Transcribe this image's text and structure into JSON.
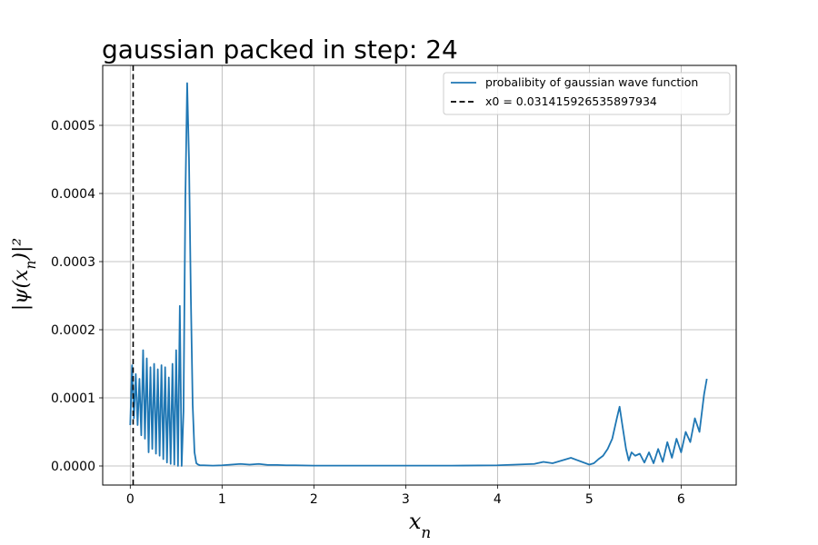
{
  "chart_data": {
    "type": "line",
    "title": "gaussian packed in step: 24",
    "xlabel": "x_n",
    "ylabel": "|ψ(x_n)|²",
    "xlim": [
      -0.3,
      6.6
    ],
    "ylim": [
      -2.8e-05,
      0.000588
    ],
    "xticks": [
      0,
      1,
      2,
      3,
      4,
      5,
      6
    ],
    "xtick_labels": [
      "0",
      "1",
      "2",
      "3",
      "4",
      "5",
      "6"
    ],
    "yticks": [
      0.0,
      0.0001,
      0.0002,
      0.0003,
      0.0004,
      0.0005
    ],
    "ytick_labels": [
      "0.0000",
      "0.0001",
      "0.0002",
      "0.0003",
      "0.0004",
      "0.0005"
    ],
    "grid": true,
    "legend_position": "top-right",
    "series": [
      {
        "name": "probalibity of gaussian wave function",
        "color": "#1f77b4",
        "style": "solid",
        "x": [
          0.0,
          0.02,
          0.04,
          0.06,
          0.08,
          0.1,
          0.12,
          0.14,
          0.16,
          0.18,
          0.2,
          0.22,
          0.24,
          0.26,
          0.28,
          0.3,
          0.32,
          0.34,
          0.36,
          0.38,
          0.4,
          0.42,
          0.44,
          0.46,
          0.48,
          0.5,
          0.52,
          0.54,
          0.56,
          0.58,
          0.6,
          0.62,
          0.64,
          0.66,
          0.68,
          0.7,
          0.72,
          0.74,
          0.76,
          0.8,
          0.9,
          1.0,
          1.1,
          1.2,
          1.3,
          1.4,
          1.5,
          1.6,
          1.7,
          1.8,
          2.0,
          2.5,
          3.0,
          3.5,
          4.0,
          4.2,
          4.4,
          4.5,
          4.6,
          4.7,
          4.8,
          4.9,
          5.0,
          5.05,
          5.1,
          5.15,
          5.2,
          5.25,
          5.3,
          5.33,
          5.36,
          5.4,
          5.43,
          5.46,
          5.5,
          5.55,
          5.6,
          5.65,
          5.7,
          5.75,
          5.8,
          5.85,
          5.9,
          5.95,
          6.0,
          6.05,
          6.1,
          6.15,
          6.2,
          6.25,
          6.28
        ],
        "y": [
          6e-05,
          0.000148,
          7e-05,
          0.000135,
          6e-05,
          0.000128,
          4.5e-05,
          0.00017,
          4e-05,
          0.000158,
          2e-05,
          0.000145,
          2.5e-05,
          0.00015,
          1.8e-05,
          0.000142,
          1.5e-05,
          0.000148,
          1e-05,
          0.000145,
          5e-06,
          0.00013,
          3e-06,
          0.00015,
          2e-06,
          0.00017,
          0.0,
          0.000235,
          0.0,
          8e-05,
          0.00039,
          0.000562,
          0.00045,
          0.00025,
          9e-05,
          2e-05,
          4e-06,
          2e-06,
          1e-06,
          1e-06,
          5e-07,
          1e-06,
          2e-06,
          3e-06,
          2e-06,
          3e-06,
          1.5e-06,
          1.5e-06,
          1e-06,
          1e-06,
          5e-07,
          5e-07,
          5e-07,
          5e-07,
          1e-06,
          2e-06,
          3e-06,
          6e-06,
          4e-06,
          8e-06,
          1.2e-05,
          7e-06,
          2e-06,
          4e-06,
          1e-05,
          1.5e-05,
          2.5e-05,
          4e-05,
          7e-05,
          8.7e-05,
          6e-05,
          2.5e-05,
          8e-06,
          2e-05,
          1.5e-05,
          1.8e-05,
          5e-06,
          2e-05,
          4e-06,
          2.5e-05,
          6e-06,
          3.5e-05,
          1.2e-05,
          4e-05,
          2e-05,
          5e-05,
          3.5e-05,
          7e-05,
          5e-05,
          0.000105,
          0.000128
        ]
      },
      {
        "name": "x0 = 0.031415926535897934",
        "color": "#000000",
        "style": "dashed",
        "x": [
          0.031415926535897934,
          0.031415926535897934
        ],
        "y": [
          -2.8e-05,
          0.000588
        ]
      }
    ]
  }
}
